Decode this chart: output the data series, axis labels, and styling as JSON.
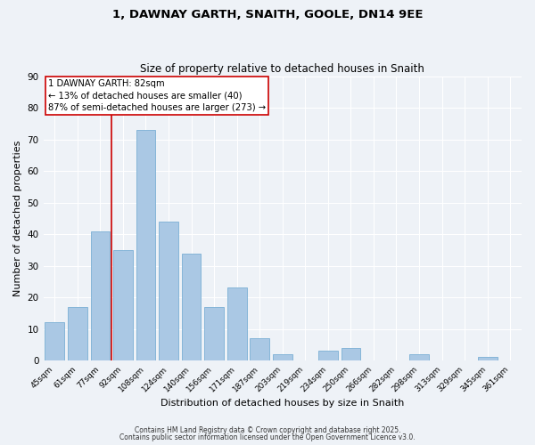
{
  "title1": "1, DAWNAY GARTH, SNAITH, GOOLE, DN14 9EE",
  "title2": "Size of property relative to detached houses in Snaith",
  "xlabel": "Distribution of detached houses by size in Snaith",
  "ylabel": "Number of detached properties",
  "bar_labels": [
    "45sqm",
    "61sqm",
    "77sqm",
    "92sqm",
    "108sqm",
    "124sqm",
    "140sqm",
    "156sqm",
    "171sqm",
    "187sqm",
    "203sqm",
    "219sqm",
    "234sqm",
    "250sqm",
    "266sqm",
    "282sqm",
    "298sqm",
    "313sqm",
    "329sqm",
    "345sqm",
    "361sqm"
  ],
  "bar_values": [
    12,
    17,
    41,
    35,
    73,
    44,
    34,
    17,
    23,
    7,
    2,
    0,
    3,
    4,
    0,
    0,
    2,
    0,
    0,
    1,
    0
  ],
  "bar_color": "#aac8e4",
  "bar_edge_color": "#7aafd4",
  "background_color": "#eef2f7",
  "grid_color": "#ffffff",
  "ylim": [
    0,
    90
  ],
  "yticks": [
    0,
    10,
    20,
    30,
    40,
    50,
    60,
    70,
    80,
    90
  ],
  "red_line_x": 2.5,
  "annotation_line1": "1 DAWNAY GARTH: 82sqm",
  "annotation_line2": "← 13% of detached houses are smaller (40)",
  "annotation_line3": "87% of semi-detached houses are larger (273) →",
  "red_line_color": "#cc0000",
  "footnote1": "Contains HM Land Registry data © Crown copyright and database right 2025.",
  "footnote2": "Contains public sector information licensed under the Open Government Licence v3.0."
}
